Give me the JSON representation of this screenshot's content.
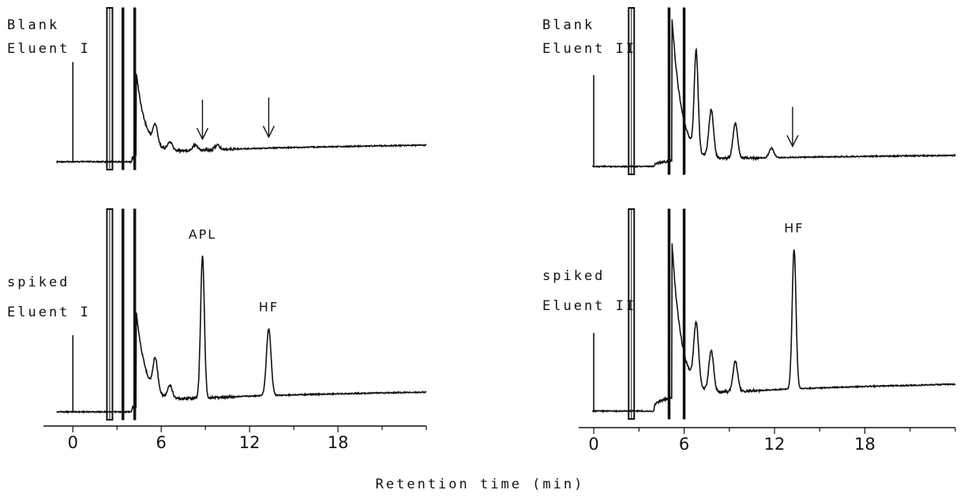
{
  "chart_data": {
    "type": "line",
    "xlabel": "Retention time (min)",
    "x_unit": "min",
    "panels": [
      {
        "labels": [
          "Blank",
          "Eluent I"
        ],
        "eluent": "Eluent I",
        "xlim": [
          -2,
          24
        ],
        "xticks": [
          0,
          6,
          12,
          18
        ],
        "peaks": [
          {
            "rt": 0.0,
            "height": 0.72
          },
          {
            "rt": 2.5,
            "height": 1.0
          },
          {
            "rt": 3.4,
            "height": 1.0
          },
          {
            "rt": 4.2,
            "height": 1.0
          },
          {
            "rt": 5.6,
            "height": 0.12
          },
          {
            "rt": 6.6,
            "height": 0.05
          },
          {
            "rt": 8.3,
            "height": 0.04
          },
          {
            "rt": 9.8,
            "height": 0.03
          }
        ],
        "markers": [
          8.8,
          13.3
        ],
        "annotations": []
      },
      {
        "labels": [
          "spiked",
          "Eluent I"
        ],
        "eluent": "Eluent I",
        "xlim": [
          -2,
          24
        ],
        "xticks": [
          0,
          6,
          12,
          18
        ],
        "peaks": [
          {
            "rt": 0.0,
            "height": 0.42
          },
          {
            "rt": 2.5,
            "height": 1.0
          },
          {
            "rt": 3.4,
            "height": 1.0
          },
          {
            "rt": 4.2,
            "height": 1.0
          },
          {
            "rt": 5.6,
            "height": 0.16
          },
          {
            "rt": 6.6,
            "height": 0.06
          },
          {
            "rt": 8.8,
            "height": 0.7
          },
          {
            "rt": 13.3,
            "height": 0.33
          }
        ],
        "markers": [],
        "annotations": [
          {
            "text": "APL",
            "rt": 8.8
          },
          {
            "text": "HF",
            "rt": 13.3
          }
        ]
      },
      {
        "labels": [
          "Blank",
          "Eluent II"
        ],
        "eluent": "Eluent II",
        "xlim": [
          -1,
          24
        ],
        "xticks": [
          0,
          6,
          12,
          18
        ],
        "peaks": [
          {
            "rt": 0.0,
            "height": 0.64
          },
          {
            "rt": 2.5,
            "height": 1.0
          },
          {
            "rt": 5.0,
            "height": 1.0
          },
          {
            "rt": 6.0,
            "height": 1.0
          },
          {
            "rt": 6.8,
            "height": 0.62
          },
          {
            "rt": 7.8,
            "height": 0.3
          },
          {
            "rt": 9.4,
            "height": 0.22
          },
          {
            "rt": 11.8,
            "height": 0.06
          }
        ],
        "markers": [
          13.2
        ],
        "annotations": []
      },
      {
        "labels": [
          "spiked",
          "Eluent II"
        ],
        "eluent": "Eluent II",
        "xlim": [
          -1,
          24
        ],
        "xticks": [
          0,
          6,
          12,
          18
        ],
        "peaks": [
          {
            "rt": 0.0,
            "height": 0.43
          },
          {
            "rt": 2.5,
            "height": 1.0
          },
          {
            "rt": 5.0,
            "height": 1.0
          },
          {
            "rt": 6.0,
            "height": 1.0
          },
          {
            "rt": 6.8,
            "height": 0.3
          },
          {
            "rt": 7.8,
            "height": 0.2
          },
          {
            "rt": 9.4,
            "height": 0.15
          },
          {
            "rt": 13.3,
            "height": 0.69
          }
        ],
        "markers": [],
        "annotations": [
          {
            "text": "HF",
            "rt": 13.3
          }
        ]
      }
    ]
  },
  "axis_title": "Retention time  (min)",
  "colors": {
    "trace": "#111111",
    "background": "#ffffff"
  }
}
